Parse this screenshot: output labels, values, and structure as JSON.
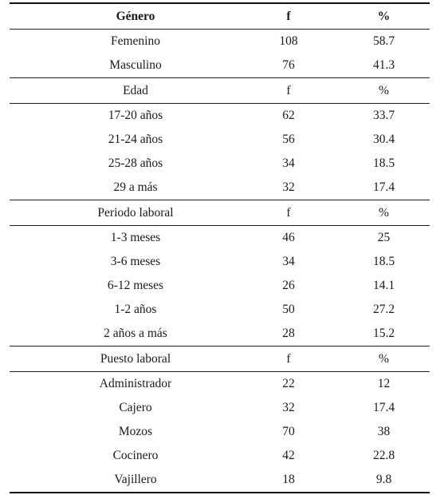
{
  "sections": [
    {
      "header": {
        "label": "Género",
        "f": "f",
        "pct": "%"
      },
      "rows": [
        {
          "label": "Femenino",
          "f": "108",
          "pct": "58.7"
        },
        {
          "label": "Masculino",
          "f": "76",
          "pct": "41.3"
        }
      ]
    },
    {
      "header": {
        "label": "Edad",
        "f": "f",
        "pct": "%"
      },
      "rows": [
        {
          "label": "17-20 años",
          "f": "62",
          "pct": "33.7"
        },
        {
          "label": "21-24 años",
          "f": "56",
          "pct": "30.4"
        },
        {
          "label": "25-28 años",
          "f": "34",
          "pct": "18.5"
        },
        {
          "label": "29 a más",
          "f": "32",
          "pct": "17.4"
        }
      ]
    },
    {
      "header": {
        "label": "Periodo laboral",
        "f": "f",
        "pct": "%"
      },
      "rows": [
        {
          "label": "1-3 meses",
          "f": "46",
          "pct": "25"
        },
        {
          "label": "3-6 meses",
          "f": "34",
          "pct": "18.5"
        },
        {
          "label": "6-12 meses",
          "f": "26",
          "pct": "14.1"
        },
        {
          "label": "1-2 años",
          "f": "50",
          "pct": "27.2"
        },
        {
          "label": "2 años a más",
          "f": "28",
          "pct": "15.2"
        }
      ]
    },
    {
      "header": {
        "label": "Puesto laboral",
        "f": "f",
        "pct": "%"
      },
      "rows": [
        {
          "label": "Administrador",
          "f": "22",
          "pct": "12"
        },
        {
          "label": "Cajero",
          "f": "32",
          "pct": "17.4"
        },
        {
          "label": "Mozos",
          "f": "70",
          "pct": "38"
        },
        {
          "label": "Cocinero",
          "f": "42",
          "pct": "22.8"
        },
        {
          "label": "Vajillero",
          "f": "18",
          "pct": "9.8"
        }
      ]
    }
  ]
}
